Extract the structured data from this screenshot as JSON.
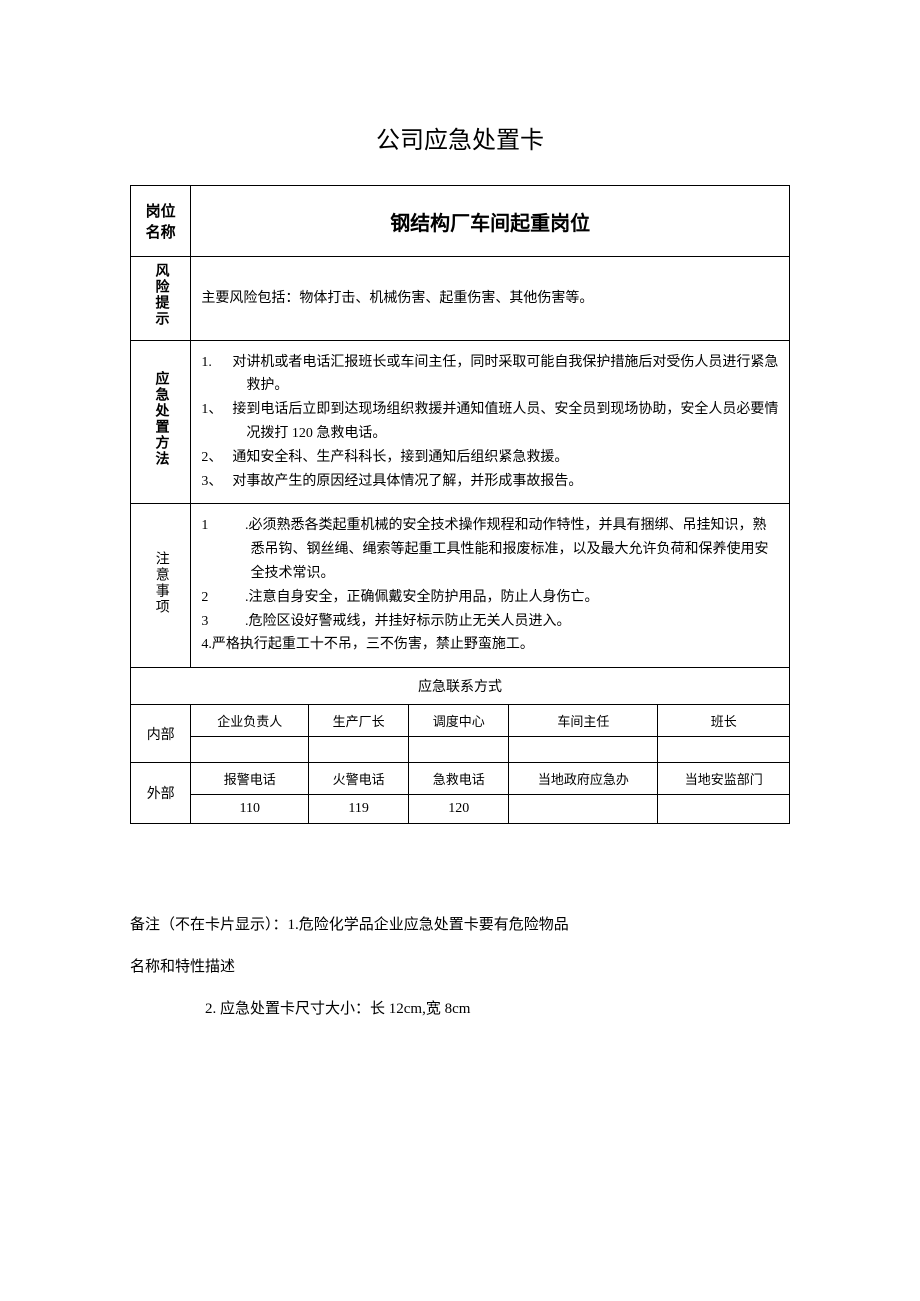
{
  "title": "公司应急处置卡",
  "table": {
    "position_label": "岗位名称",
    "position_value": "钢结构厂车间起重岗位",
    "risk_label": "风险提示",
    "risk_content": "主要风险包括：物体打击、机械伤害、起重伤害、其他伤害等。",
    "method_label": "应急处置方法",
    "method_items": [
      {
        "num": "1.",
        "text": "对讲机或者电话汇报班长或车间主任，同时采取可能自我保护措施后对受伤人员进行紧急救护。"
      },
      {
        "num": "1、",
        "text": "接到电话后立即到达现场组织救援并通知值班人员、安全员到现场协助，安全人员必要情况拨打 120 急救电话。"
      },
      {
        "num": "2、",
        "text": "通知安全科、生产科科长，接到通知后组织紧急救援。"
      },
      {
        "num": "3、",
        "text": "对事故产生的原因经过具体情况了解，并形成事故报告。"
      }
    ],
    "precaution_label": "注意事项",
    "precaution_items": [
      {
        "num": "1",
        "text": ".必须熟悉各类起重机械的安全技术操作规程和动作特性，并具有捆绑、吊挂知识，熟悉吊钩、钢丝绳、绳索等起重工具性能和报废标准，以及最大允许负荷和保养使用安全技术常识。"
      },
      {
        "num": "2",
        "text": ".注意自身安全，正确佩戴安全防护用品，防止人身伤亡。"
      },
      {
        "num": "3",
        "text": ".危险区设好警戒线，并挂好标示防止无关人员进入。"
      },
      {
        "num": "4.",
        "text": "严格执行起重工十不吊，三不伤害，禁止野蛮施工。"
      }
    ],
    "contact_header": "应急联系方式",
    "internal_label": "内部",
    "internal_cols": [
      "企业负责人",
      "生产厂长",
      "调度中心",
      "车间主任",
      "班长"
    ],
    "internal_vals": [
      "",
      "",
      "",
      "",
      ""
    ],
    "external_label": "外部",
    "external_cols": [
      "报警电话",
      "火警电话",
      "急救电话",
      "当地政府应急办",
      "当地安监部门"
    ],
    "external_vals": [
      "110",
      "119",
      "120",
      "",
      ""
    ]
  },
  "notes": {
    "line1": "备注（不在卡片显示）：1.危险化学品企业应急处置卡要有危险物品",
    "line2": "名称和特性描述",
    "line3": "2. 应急处置卡尺寸大小：长 12cm,宽 8cm"
  }
}
